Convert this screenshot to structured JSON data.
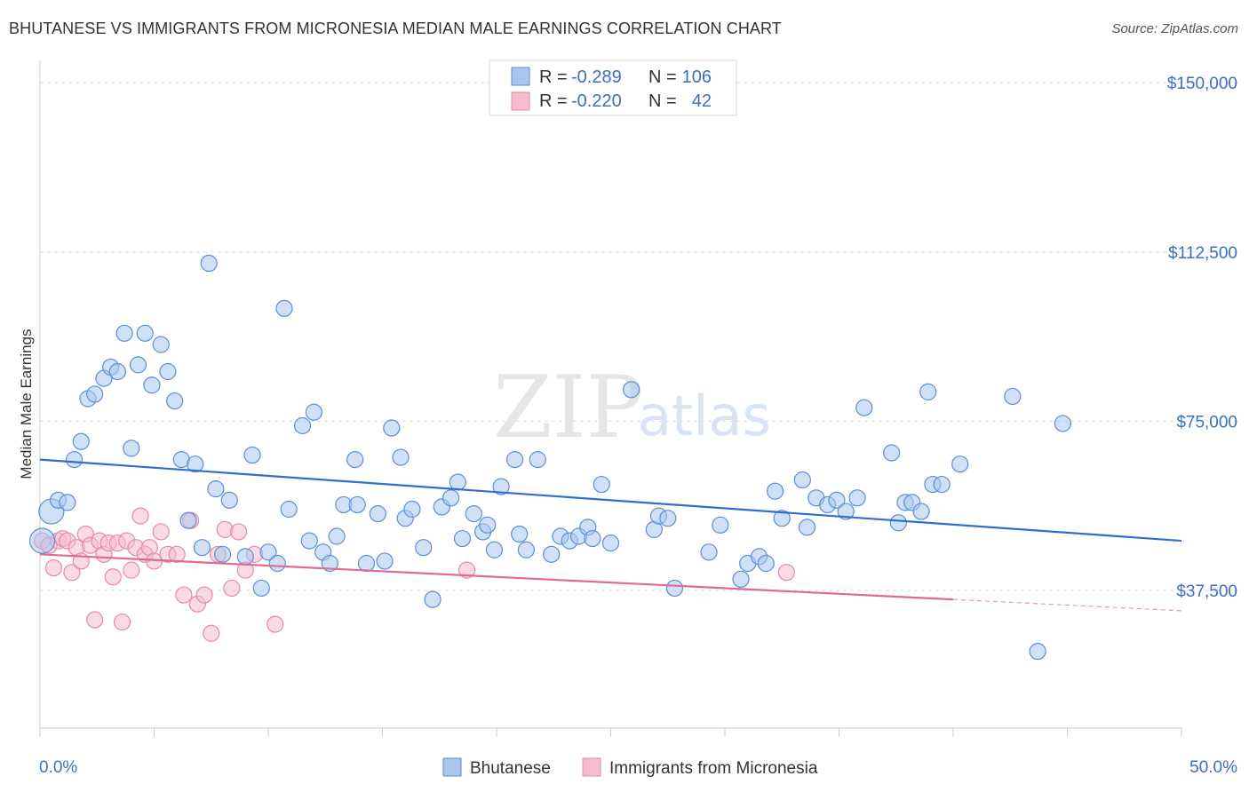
{
  "title": "BHUTANESE VS IMMIGRANTS FROM MICRONESIA MEDIAN MALE EARNINGS CORRELATION CHART",
  "source": "Source: ZipAtlas.com",
  "watermark": {
    "zip": "ZIP",
    "atlas": "atlas"
  },
  "chart_data": {
    "type": "scatter",
    "xlabel": "",
    "ylabel": "Median Male Earnings",
    "xlim": [
      0,
      50
    ],
    "ylim": [
      7000,
      153000
    ],
    "x_tick_labels": {
      "min": "0.0%",
      "max": "50.0%"
    },
    "y_ticks": [
      {
        "value": 37500,
        "label": "$37,500"
      },
      {
        "value": 75000,
        "label": "$75,000"
      },
      {
        "value": 112500,
        "label": "$112,500"
      },
      {
        "value": 150000,
        "label": "$150,000"
      }
    ],
    "grid": true,
    "colors": {
      "blue_fill": "#a9c6ee",
      "blue_stroke": "#5b8fd6",
      "blue_line": "#2f6fcc",
      "pink_fill": "#f6bccd",
      "pink_stroke": "#e58aa8",
      "pink_line": "#e06a93",
      "grid": "#dddddd",
      "axis": "#cccccc",
      "accent": "#3a6fc4"
    },
    "stats": [
      {
        "r_label": "R =",
        "r_value": "-0.289",
        "n_label": "N =",
        "n_value": "106"
      },
      {
        "r_label": "R =",
        "r_value": "-0.220",
        "n_label": "N =",
        "n_value": "42"
      }
    ],
    "series": [
      {
        "name": "Bhutanese",
        "trend": {
          "x0": 0,
          "y0": 66500,
          "x1": 50,
          "y1": 48500
        },
        "points": [
          [
            0.1,
            48500
          ],
          [
            0.5,
            55000
          ],
          [
            0.8,
            57500
          ],
          [
            1.2,
            57000
          ],
          [
            1.5,
            66500
          ],
          [
            1.8,
            70500
          ],
          [
            2.1,
            80000
          ],
          [
            2.4,
            81000
          ],
          [
            2.8,
            84500
          ],
          [
            3.1,
            87000
          ],
          [
            3.4,
            86000
          ],
          [
            3.7,
            94500
          ],
          [
            4.0,
            69000
          ],
          [
            4.3,
            87500
          ],
          [
            4.6,
            94500
          ],
          [
            4.9,
            83000
          ],
          [
            5.3,
            92000
          ],
          [
            5.6,
            86000
          ],
          [
            5.9,
            79500
          ],
          [
            6.2,
            66500
          ],
          [
            6.5,
            53000
          ],
          [
            6.8,
            65500
          ],
          [
            7.1,
            47000
          ],
          [
            7.4,
            110000
          ],
          [
            7.7,
            60000
          ],
          [
            8.0,
            45500
          ],
          [
            8.3,
            57500
          ],
          [
            9.0,
            45000
          ],
          [
            9.3,
            67500
          ],
          [
            9.7,
            38000
          ],
          [
            10.0,
            46000
          ],
          [
            10.4,
            43500
          ],
          [
            10.7,
            100000
          ],
          [
            10.9,
            55500
          ],
          [
            11.5,
            74000
          ],
          [
            11.8,
            48500
          ],
          [
            12.0,
            77000
          ],
          [
            12.4,
            46000
          ],
          [
            12.7,
            43500
          ],
          [
            13.0,
            49500
          ],
          [
            13.3,
            56500
          ],
          [
            13.8,
            66500
          ],
          [
            13.9,
            56500
          ],
          [
            14.3,
            43500
          ],
          [
            14.8,
            54500
          ],
          [
            15.1,
            44000
          ],
          [
            15.4,
            73500
          ],
          [
            15.8,
            67000
          ],
          [
            16.0,
            53500
          ],
          [
            16.3,
            55500
          ],
          [
            16.8,
            47000
          ],
          [
            17.2,
            35500
          ],
          [
            17.6,
            56000
          ],
          [
            18.0,
            58000
          ],
          [
            18.3,
            61500
          ],
          [
            18.5,
            49000
          ],
          [
            19.0,
            54500
          ],
          [
            19.4,
            50500
          ],
          [
            19.6,
            52000
          ],
          [
            19.9,
            46500
          ],
          [
            20.2,
            60500
          ],
          [
            20.8,
            66500
          ],
          [
            21.0,
            50000
          ],
          [
            21.3,
            46500
          ],
          [
            21.8,
            66500
          ],
          [
            22.4,
            45500
          ],
          [
            22.8,
            49500
          ],
          [
            23.2,
            48500
          ],
          [
            23.6,
            49500
          ],
          [
            24.0,
            51500
          ],
          [
            24.2,
            49000
          ],
          [
            24.6,
            61000
          ],
          [
            25.0,
            48000
          ],
          [
            25.9,
            82000
          ],
          [
            26.9,
            51000
          ],
          [
            27.1,
            54000
          ],
          [
            27.5,
            53500
          ],
          [
            27.8,
            38000
          ],
          [
            29.3,
            46000
          ],
          [
            29.8,
            52000
          ],
          [
            30.7,
            40000
          ],
          [
            31.0,
            43500
          ],
          [
            31.5,
            45000
          ],
          [
            31.8,
            43500
          ],
          [
            32.2,
            59500
          ],
          [
            32.5,
            53500
          ],
          [
            33.4,
            62000
          ],
          [
            33.6,
            51500
          ],
          [
            34.0,
            58000
          ],
          [
            34.5,
            56500
          ],
          [
            34.9,
            57500
          ],
          [
            35.3,
            55000
          ],
          [
            35.8,
            58000
          ],
          [
            36.1,
            78000
          ],
          [
            37.3,
            68000
          ],
          [
            37.6,
            52500
          ],
          [
            37.9,
            57000
          ],
          [
            38.2,
            57000
          ],
          [
            38.6,
            55000
          ],
          [
            38.9,
            81500
          ],
          [
            39.1,
            61000
          ],
          [
            39.5,
            61000
          ],
          [
            40.3,
            65500
          ],
          [
            42.6,
            80500
          ],
          [
            43.7,
            24000
          ],
          [
            44.8,
            74500
          ]
        ]
      },
      {
        "name": "Immigrants from Micronesia",
        "trend": {
          "x0": 0,
          "y0": 45500,
          "x1": 40,
          "y1": 35500,
          "dash_to_x": 50,
          "dash_to_y": 33000
        },
        "points": [
          [
            0.1,
            48500
          ],
          [
            0.4,
            47500
          ],
          [
            0.6,
            42500
          ],
          [
            0.8,
            48500
          ],
          [
            1.0,
            49000
          ],
          [
            1.2,
            48500
          ],
          [
            1.4,
            41500
          ],
          [
            1.6,
            47000
          ],
          [
            1.8,
            44000
          ],
          [
            2.0,
            50000
          ],
          [
            2.2,
            47500
          ],
          [
            2.4,
            31000
          ],
          [
            2.6,
            48500
          ],
          [
            2.8,
            45500
          ],
          [
            3.0,
            48000
          ],
          [
            3.2,
            40500
          ],
          [
            3.4,
            48000
          ],
          [
            3.6,
            30500
          ],
          [
            3.8,
            48500
          ],
          [
            4.0,
            42000
          ],
          [
            4.2,
            47000
          ],
          [
            4.4,
            54000
          ],
          [
            4.6,
            45500
          ],
          [
            4.8,
            47000
          ],
          [
            5.0,
            44000
          ],
          [
            5.3,
            50500
          ],
          [
            5.6,
            45500
          ],
          [
            6.0,
            45500
          ],
          [
            6.3,
            36500
          ],
          [
            6.6,
            53000
          ],
          [
            6.9,
            34500
          ],
          [
            7.2,
            36500
          ],
          [
            7.5,
            28000
          ],
          [
            7.8,
            45500
          ],
          [
            8.1,
            51000
          ],
          [
            8.4,
            38000
          ],
          [
            8.7,
            50500
          ],
          [
            9.0,
            42000
          ],
          [
            9.4,
            45500
          ],
          [
            10.3,
            30000
          ],
          [
            18.7,
            42000
          ],
          [
            32.7,
            41500
          ]
        ]
      }
    ]
  }
}
